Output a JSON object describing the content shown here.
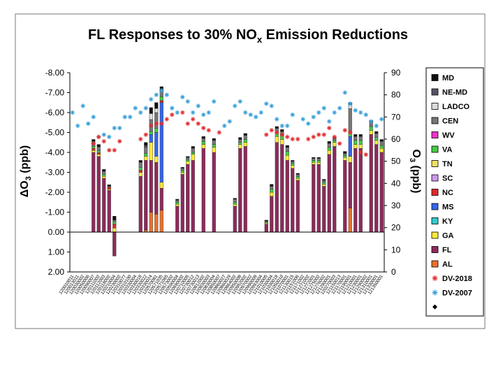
{
  "chart_data": {
    "type": "bar",
    "title": "FL Responses to 30% NOx Emission Reductions",
    "title_parts": {
      "pre": "FL Responses to 30% NO",
      "sub": "x",
      "post": " Emission Reductions"
    },
    "ylabel_left": "ΔO3 (ppb)",
    "ylabel_left_parts": {
      "pre": "ΔO",
      "sub": "3",
      "post": " (ppb)"
    },
    "ylabel_right": "O3 (ppb)",
    "ylabel_right_parts": {
      "pre": "O",
      "sub": "3",
      "post": " (ppb)"
    },
    "left_axis": {
      "range": [
        2.0,
        -8.0
      ],
      "ticks": [
        "-8.00",
        "-7.00",
        "-6.00",
        "-5.00",
        "-4.00",
        "-3.00",
        "-2.00",
        "-1.00",
        "0.00",
        "1.00",
        "2.00"
      ],
      "tick_values": [
        -8,
        -7,
        -6,
        -5,
        -4,
        -3,
        -2,
        -1,
        0,
        1,
        2
      ]
    },
    "right_axis": {
      "range": [
        0,
        90
      ],
      "ticks": [
        "90",
        "80",
        "70",
        "60",
        "50",
        "40",
        "30",
        "20",
        "10",
        "0"
      ],
      "tick_values": [
        90,
        80,
        70,
        60,
        50,
        40,
        30,
        20,
        10,
        0
      ]
    },
    "stack_order": [
      "AL",
      "FL",
      "GA",
      "KY",
      "MS",
      "NC",
      "SC",
      "TN",
      "VA",
      "WV",
      "CEN",
      "LADCO",
      "NE-MD",
      "MD"
    ],
    "series_colors": {
      "AL": "#e8722a",
      "FL": "#8e2a5c",
      "GA": "#ffeb3b",
      "KY": "#33cccc",
      "MS": "#3366ee",
      "NC": "#e02828",
      "SC": "#cc99ee",
      "TN": "#f0e060",
      "VA": "#44cc44",
      "WV": "#ee33cc",
      "CEN": "#777777",
      "LADCO": "#dddddd",
      "NE-MD": "#555566",
      "MD": "#111111"
    },
    "legend": [
      {
        "label": "MD",
        "color": "#111111",
        "kind": "box"
      },
      {
        "label": "NE-MD",
        "color": "#555566",
        "kind": "box"
      },
      {
        "label": "LADCO",
        "color": "#dddddd",
        "kind": "box"
      },
      {
        "label": "CEN",
        "color": "#777777",
        "kind": "box"
      },
      {
        "label": "WV",
        "color": "#ee33cc",
        "kind": "box"
      },
      {
        "label": "VA",
        "color": "#44cc44",
        "kind": "box"
      },
      {
        "label": "TN",
        "color": "#f0e060",
        "kind": "box"
      },
      {
        "label": "SC",
        "color": "#cc99ee",
        "kind": "box"
      },
      {
        "label": "NC",
        "color": "#e02828",
        "kind": "box"
      },
      {
        "label": "MS",
        "color": "#3366ee",
        "kind": "box"
      },
      {
        "label": "KY",
        "color": "#33cccc",
        "kind": "box"
      },
      {
        "label": "GA",
        "color": "#ffeb3b",
        "kind": "box"
      },
      {
        "label": "FL",
        "color": "#8e2a5c",
        "kind": "box"
      },
      {
        "label": "AL",
        "color": "#e8722a",
        "kind": "box"
      },
      {
        "label": "DV-2018",
        "color": "#e03030",
        "kind": "star"
      },
      {
        "label": "DV-2007",
        "color": "#3aa0d8",
        "kind": "star"
      },
      {
        "label": "",
        "color": "#000000",
        "kind": "diamond"
      }
    ],
    "categories": [
      "120010011",
      "120013011",
      "120030002",
      "120050006",
      "120090007",
      "120111002",
      "120112003",
      "120118002",
      "120210004",
      "120230002",
      "120310077",
      "120310100",
      "120330004",
      "120330018",
      "120330022",
      "120330024",
      "120570081",
      "120571035",
      "120571065",
      "120573002",
      "120590004",
      "120690002",
      "120710005",
      "120730012",
      "120730013",
      "120812002",
      "120830003",
      "120830004",
      "120850007",
      "120860027",
      "120860029",
      "120864002",
      "120950008",
      "120952002",
      "120970002",
      "120990009",
      "120993004",
      "121010005",
      "121030004",
      "121030018",
      "121050010",
      "121070001",
      "121130015",
      "121151006",
      "121171002",
      "121271002",
      "121272001",
      "121275002",
      "121276002",
      "121290001",
      "120270003",
      "121150013",
      "121170001",
      "121190001",
      "121210001",
      "121230001",
      "121290002",
      "121310001",
      "121330001",
      "121350001"
    ],
    "bars": [
      null,
      null,
      null,
      null,
      {
        "FL": 4.0,
        "GA": 0.1,
        "NC": 0.1,
        "VA": 0.1,
        "CEN": 0.25,
        "MD": 0.1
      },
      {
        "FL": 3.8,
        "GA": 0.1,
        "NC": 0.08,
        "VA": 0.1,
        "CEN": 0.2,
        "MD": 0.12
      },
      {
        "FL": 2.7,
        "GA": 0.1,
        "VA": 0.1,
        "CEN": 0.15,
        "MD": 0.1
      },
      {
        "FL": 2.1,
        "GA": 0.05,
        "NC": 0.1,
        "CEN": 0.05,
        "MD": 0.08
      },
      {
        "FL": -1.2,
        "GA": 0.2,
        "NC": 0.2,
        "VA": 0.12,
        "CEN": 0.08,
        "MD": 0.2
      },
      null,
      null,
      null,
      null,
      {
        "FL": 2.8,
        "GA": 0.2,
        "NC": 0.1,
        "VA": 0.15,
        "CEN": 0.25,
        "MD": 0.1
      },
      {
        "AL": 0.1,
        "FL": 3.5,
        "GA": 0.2,
        "VA": 0.15,
        "CEN": 0.3,
        "NE-MD": 0.1,
        "MD": 0.15
      },
      {
        "AL": 1.0,
        "FL": 2.6,
        "GA": 0.9,
        "MS": 0.4,
        "VA": 0.15,
        "CEN": 0.6,
        "LADCO": 0.3,
        "MD": 0.3
      },
      {
        "AL": 0.9,
        "FL": 2.6,
        "GA": 0.3,
        "MS": 1.2,
        "VA": 0.2,
        "CEN": 0.8,
        "LADCO": 0.2,
        "MD": 0.3
      },
      {
        "AL": 1.1,
        "FL": 1.1,
        "GA": 0.3,
        "MS": 4.0,
        "NC": 0.1,
        "VA": 0.2,
        "CEN": 0.3,
        "MD": 0.2
      },
      null,
      null,
      {
        "FL": 1.3,
        "GA": 0.1,
        "VA": 0.1,
        "CEN": 0.1,
        "MD": 0.05
      },
      {
        "FL": 2.9,
        "GA": 0.1,
        "VA": 0.1,
        "CEN": 0.1,
        "MD": 0.05
      },
      {
        "FL": 3.4,
        "GA": 0.15,
        "VA": 0.1,
        "CEN": 0.1,
        "MD": 0.05
      },
      {
        "FL": 3.6,
        "GA": 0.3,
        "VA": 0.1,
        "CEN": 0.2,
        "MD": 0.1
      },
      null,
      {
        "FL": 4.2,
        "GA": 0.2,
        "VA": 0.15,
        "CEN": 0.15,
        "MD": 0.1
      },
      null,
      {
        "FL": 4.0,
        "GA": 0.25,
        "VA": 0.15,
        "CEN": 0.2,
        "MD": 0.1
      },
      null,
      null,
      null,
      {
        "FL": 1.3,
        "GA": 0.1,
        "VA": 0.1,
        "CEN": 0.15,
        "MD": 0.05
      },
      {
        "FL": 4.2,
        "GA": 0.2,
        "VA": 0.1,
        "CEN": 0.15,
        "MD": 0.1
      },
      {
        "FL": 4.3,
        "GA": 0.2,
        "VA": 0.15,
        "CEN": 0.2,
        "MD": 0.1
      },
      null,
      null,
      null,
      {
        "FL": 0.4,
        "GA": 0.05,
        "VA": 0.05,
        "CEN": 0.05,
        "MD": 0.05
      },
      {
        "FL": 1.8,
        "GA": 0.2,
        "VA": 0.15,
        "CEN": 0.15,
        "MD": 0.1
      },
      {
        "FL": 4.5,
        "GA": 0.3,
        "VA": 0.2,
        "CEN": 0.2,
        "MD": 0.1
      },
      {
        "FL": 4.4,
        "GA": 0.25,
        "VA": 0.2,
        "CEN": 0.2,
        "MD": 0.1
      },
      {
        "FL": 3.6,
        "GA": 0.25,
        "VA": 0.2,
        "CEN": 0.2,
        "MD": 0.1
      },
      {
        "FL": 3.2,
        "GA": 0.15,
        "VA": 0.1,
        "CEN": 0.1,
        "MD": 0.05
      },
      {
        "FL": 2.6,
        "GA": 0.1,
        "VA": 0.1,
        "CEN": 0.1,
        "MD": 0.05
      },
      null,
      null,
      {
        "FL": 3.4,
        "GA": 0.1,
        "VA": 0.1,
        "CEN": 0.1,
        "MD": 0.05
      },
      {
        "FL": 3.4,
        "GA": 0.1,
        "VA": 0.1,
        "CEN": 0.1,
        "MD": 0.05
      },
      {
        "FL": 2.3,
        "GA": 0.1,
        "VA": 0.1,
        "CEN": 0.1,
        "MD": 0.05
      },
      {
        "FL": 3.9,
        "GA": 0.2,
        "VA": 0.15,
        "CEN": 0.2,
        "MD": 0.1
      },
      {
        "FL": 4.3,
        "GA": 0.2,
        "VA": 0.1,
        "CEN": 0.1,
        "MD": 0.05
      },
      null,
      {
        "FL": 3.6,
        "GA": 0.15,
        "VA": 0.1,
        "CEN": 0.1,
        "MD": 0.1
      },
      {
        "AL": 1.2,
        "FL": 2.3,
        "GA": 0.3,
        "MS": 1.0,
        "VA": 0.2,
        "CEN": 1.2,
        "LADCO": 0.2,
        "MD": 0.1
      },
      {
        "FL": 4.2,
        "GA": 0.2,
        "VA": 0.2,
        "CEN": 0.2,
        "MD": 0.1
      },
      {
        "FL": 4.2,
        "GA": 0.2,
        "VA": 0.2,
        "CEN": 0.2,
        "MD": 0.1
      },
      null,
      {
        "FL": 4.9,
        "GA": 0.2,
        "VA": 0.2,
        "CEN": 0.2,
        "MD": 0.1
      },
      {
        "FL": 4.4,
        "GA": 0.2,
        "VA": 0.15,
        "CEN": 0.2,
        "MD": 0.1
      },
      {
        "FL": 4.0,
        "GA": 0.2,
        "VA": 0.15,
        "CEN": 0.2,
        "MD": 0.1
      },
      null
    ],
    "dv_2018": [
      null,
      null,
      null,
      null,
      58,
      61,
      59,
      55,
      55,
      59,
      null,
      null,
      null,
      60,
      62,
      66,
      67,
      67,
      69,
      71,
      null,
      72,
      67,
      69,
      67,
      65,
      64,
      null,
      63,
      null,
      null,
      null,
      null,
      null,
      null,
      null,
      null,
      62,
      64,
      63,
      62,
      61,
      60,
      60,
      null,
      60,
      61,
      62,
      62,
      65,
      61,
      58,
      64,
      63,
      null,
      54,
      53,
      null,
      null,
      null
    ],
    "dv_2007": [
      72,
      66,
      75,
      67,
      70,
      61,
      62,
      61,
      65,
      65,
      70,
      70,
      74,
      72,
      74,
      78,
      80,
      82,
      80,
      74,
      72,
      79,
      77,
      72,
      75,
      71,
      72,
      77,
      null,
      66,
      68,
      75,
      77,
      72,
      71,
      70,
      72,
      76,
      75,
      69,
      66,
      66,
      71,
      null,
      69,
      67,
      70,
      72,
      74,
      68,
      72,
      74,
      81,
      76,
      73,
      72,
      71,
      68,
      66,
      69
    ]
  }
}
